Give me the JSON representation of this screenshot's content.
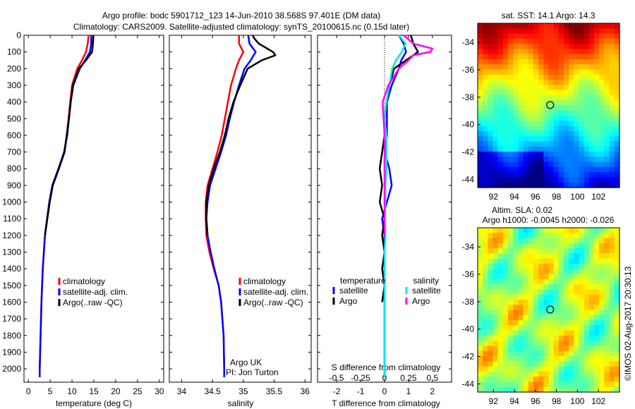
{
  "figure": {
    "title_line1": "Argo profile: bodc 5901712_123 14-Jun-2010 38.568S 97.401E (DM data)",
    "title_line2": "Climatology: CARS2009. Satellite-adjusted climatology: synTS_20100615.nc (0.15d later)",
    "credit": "©IMOS 02-Aug-2017 20:30:13",
    "argo_label": "Argo UK",
    "pi_label": "PI: Jon Turton"
  },
  "colors": {
    "climatology": "#ff0000",
    "satellite": "#0000ff",
    "argo": "#000000",
    "sal_satellite": "#00e5e5",
    "sal_argo": "#ff00ff"
  },
  "chart_data": [
    {
      "type": "line",
      "panel": "temperature",
      "xlabel": "temperature (deg C)",
      "ylabel": "",
      "xlim": [
        -1,
        31
      ],
      "ylim": [
        2080,
        0
      ],
      "xticks": [
        0,
        5,
        10,
        15,
        20,
        25,
        30
      ],
      "yticks": [
        0,
        100,
        200,
        300,
        400,
        500,
        600,
        700,
        800,
        900,
        1000,
        1100,
        1200,
        1300,
        1400,
        1500,
        1600,
        1700,
        1800,
        1900,
        2000
      ],
      "legend": [
        "climatology",
        "satellite-adj. clim.",
        "Argo(..raw -QC)"
      ],
      "legend_position": "lower-right",
      "series": [
        {
          "name": "climatology",
          "color": "#ff0000",
          "depth": [
            0,
            50,
            100,
            150,
            200,
            300,
            400,
            500,
            600,
            700,
            800,
            900,
            1000,
            1200,
            1400,
            1600,
            1800,
            2000,
            2050
          ],
          "values": [
            13.8,
            13.6,
            13.2,
            12.3,
            11.2,
            10.0,
            9.6,
            9.2,
            8.8,
            8.2,
            6.9,
            5.5,
            4.8,
            3.8,
            3.3,
            3.0,
            2.8,
            2.6,
            2.6
          ]
        },
        {
          "name": "satellite-adj. clim.",
          "color": "#0000ff",
          "depth": [
            0,
            50,
            100,
            150,
            200,
            300,
            400,
            500,
            600,
            700,
            800,
            900,
            1000,
            1200,
            1400,
            1600,
            1800,
            2000,
            2050
          ],
          "values": [
            14.4,
            14.4,
            14.1,
            13.0,
            11.8,
            10.3,
            9.7,
            9.3,
            8.9,
            8.2,
            6.9,
            5.5,
            4.8,
            3.8,
            3.3,
            3.0,
            2.8,
            2.6,
            2.6
          ]
        },
        {
          "name": "Argo(..raw -QC)",
          "color": "#000000",
          "depth": [
            0,
            50,
            100,
            150,
            200,
            300,
            400,
            500,
            600,
            700,
            800,
            900,
            1000,
            1200
          ],
          "values": [
            14.9,
            14.8,
            14.6,
            13.2,
            11.6,
            10.2,
            9.7,
            9.3,
            8.8,
            8.3,
            7.0,
            5.6,
            4.9,
            3.8
          ]
        }
      ]
    },
    {
      "type": "line",
      "panel": "salinity",
      "xlabel": "salinity",
      "ylabel": "",
      "xlim": [
        33.8,
        36.1
      ],
      "ylim": [
        2080,
        0
      ],
      "xticks": [
        34,
        34.5,
        35,
        35.5,
        36
      ],
      "legend": [
        "climatology",
        "satellite-adj. clim.",
        "Argo(..raw -QC)"
      ],
      "legend_position": "lower-right",
      "series": [
        {
          "name": "climatology",
          "color": "#ff0000",
          "depth": [
            0,
            50,
            100,
            150,
            200,
            300,
            400,
            500,
            600,
            700,
            800,
            900,
            1000,
            1100,
            1200,
            1300,
            1400,
            1500,
            1600,
            1800,
            2000,
            2050
          ],
          "values": [
            34.93,
            34.93,
            35.0,
            34.93,
            34.88,
            34.8,
            34.75,
            34.7,
            34.65,
            34.58,
            34.5,
            34.42,
            34.39,
            34.39,
            34.4,
            34.45,
            34.52,
            34.6,
            34.64,
            34.68,
            34.69,
            34.69
          ]
        },
        {
          "name": "satellite-adj. clim.",
          "color": "#0000ff",
          "depth": [
            0,
            50,
            100,
            150,
            200,
            300,
            400,
            500,
            600,
            700,
            800,
            900,
            1000,
            1100,
            1200,
            1300,
            1400,
            1500,
            1600,
            1800,
            2000,
            2050
          ],
          "values": [
            35.08,
            35.1,
            35.2,
            35.12,
            35.02,
            34.93,
            34.85,
            34.78,
            34.72,
            34.64,
            34.55,
            34.46,
            34.42,
            34.4,
            34.42,
            34.47,
            34.53,
            34.6,
            34.64,
            34.68,
            34.69,
            34.69
          ]
        },
        {
          "name": "Argo(..raw -QC)",
          "color": "#000000",
          "depth": [
            0,
            20,
            50,
            100,
            120,
            150,
            200,
            300,
            400,
            500,
            600,
            700,
            800,
            900,
            1000,
            1100,
            1200
          ],
          "values": [
            35.15,
            35.18,
            35.25,
            35.48,
            35.52,
            35.3,
            35.07,
            34.95,
            34.84,
            34.76,
            34.7,
            34.62,
            34.52,
            34.44,
            34.4,
            34.4,
            34.42
          ]
        }
      ]
    },
    {
      "type": "line",
      "panel": "difference",
      "xlabel": "T difference from climatology",
      "xlabel_top": "S difference from climatology",
      "xlim": [
        -2.8,
        2.8
      ],
      "ylim": [
        2080,
        0
      ],
      "xticks_T": [
        -2,
        -1,
        0,
        1,
        2
      ],
      "xticks_S": [
        "-0.5",
        "-0.25",
        "0",
        "0.25",
        "0.5"
      ],
      "legend_temperature_title": "temperature",
      "legend_salinity_title": "salinity",
      "legend_items": [
        "satellite",
        "Argo",
        "satellite",
        "Argo"
      ],
      "legend_position": "lower-center",
      "series": [
        {
          "name": "satellite",
          "group": "temperature",
          "color": "#0000ff",
          "depth": [
            0,
            50,
            100,
            150,
            200,
            300,
            400,
            500,
            600,
            700,
            800,
            900,
            1000,
            1100,
            1200,
            1300,
            1400,
            1500,
            1600,
            1700,
            1800,
            1900,
            2000,
            2050
          ],
          "values": [
            0.6,
            0.8,
            0.9,
            0.7,
            0.6,
            0.3,
            0.1,
            0.1,
            0.1,
            0.0,
            0.2,
            0.3,
            0.1,
            -0.1,
            0.0,
            0.0,
            0.0,
            0.0,
            0.0,
            0.0,
            0.0,
            0.0,
            0.0,
            0.0
          ]
        },
        {
          "name": "Argo",
          "group": "temperature",
          "color": "#000000",
          "depth": [
            0,
            50,
            100,
            150,
            200,
            300,
            400,
            500,
            600,
            700,
            800,
            900,
            1000,
            1100,
            1200,
            1300,
            1400,
            1500,
            1600
          ],
          "values": [
            1.1,
            1.2,
            1.4,
            0.9,
            0.4,
            0.2,
            0.1,
            0.0,
            0.0,
            -0.1,
            -0.2,
            -0.1,
            -0.2,
            0.0,
            -0.1,
            0.0,
            -0.1,
            0.0,
            -0.1
          ]
        },
        {
          "name": "satellite",
          "group": "salinity",
          "color": "#00e5e5",
          "depth": [
            0,
            50,
            100,
            150,
            200,
            300,
            400,
            500,
            600,
            700,
            800,
            900,
            1000,
            1100,
            1200,
            1300,
            1400,
            1500,
            1600,
            1700,
            1800,
            1900,
            2000,
            2050
          ],
          "values": [
            0.15,
            0.22,
            0.18,
            0.12,
            0.08,
            0.05,
            0.02,
            0.0,
            0.02,
            0.02,
            0.02,
            0.01,
            0.01,
            0.0,
            0.01,
            0.0,
            0.0,
            0.0,
            0.0,
            0.0,
            0.0,
            0.0,
            0.0,
            0.0
          ]
        },
        {
          "name": "Argo",
          "group": "salinity",
          "color": "#ff00ff",
          "depth": [
            0,
            50,
            80,
            100,
            120,
            150,
            200,
            300,
            400,
            500,
            600,
            700,
            800,
            900,
            1000,
            1100,
            1200
          ],
          "values": [
            0.2,
            0.3,
            0.5,
            0.48,
            0.3,
            0.25,
            0.15,
            0.04,
            -0.02,
            -0.01,
            0.0,
            0.0,
            0.0,
            0.0,
            0.0,
            0.0,
            0.0
          ]
        }
      ]
    },
    {
      "type": "heatmap",
      "panel": "sst_map",
      "title": "sat. SST: 14.1  Argo: 14.3",
      "xticks": [
        92,
        94,
        96,
        98,
        100,
        102
      ],
      "yticks": [
        -34,
        -36,
        -38,
        -40,
        -42,
        -44
      ],
      "xlim": [
        90.5,
        104
      ],
      "ylim": [
        -44.6,
        -32.6
      ],
      "marker": {
        "lon": 97.4,
        "lat": -38.57
      }
    },
    {
      "type": "heatmap",
      "panel": "sla_map",
      "title": "Altim. SLA: 0.02",
      "subtitle": "Argo h1000: -0.0045 h2000: -0.026",
      "xticks": [
        92,
        94,
        96,
        98,
        100,
        102
      ],
      "yticks": [
        -34,
        -36,
        -38,
        -40,
        -42,
        -44
      ],
      "xlim": [
        90.5,
        104
      ],
      "ylim": [
        -44.6,
        -32.6
      ],
      "marker": {
        "lon": 97.4,
        "lat": -38.57
      }
    }
  ]
}
